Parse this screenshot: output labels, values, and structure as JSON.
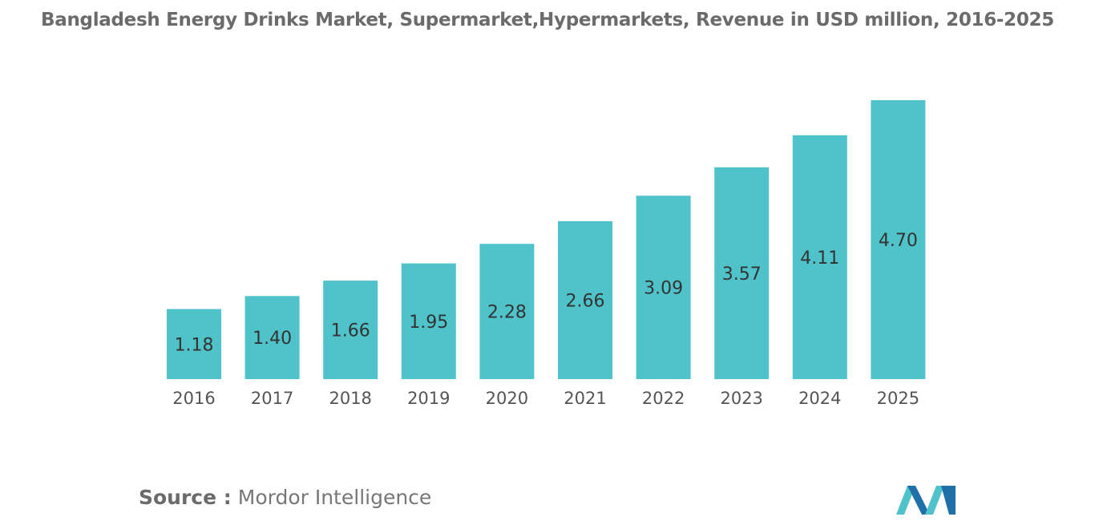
{
  "source": {
    "label": "Source :",
    "text": "Mordor Intelligence"
  },
  "colors": {
    "bar": "#4fc3c9",
    "title": "#6b6b6b",
    "axis_text": "#555555",
    "value_text": "#333333",
    "logo_dark": "#1f6fa8",
    "logo_light": "#4fc3c9"
  },
  "chart_data": {
    "type": "bar",
    "title": "Bangladesh Energy Drinks Market, Supermarket,Hypermarkets, Revenue in USD million, 2016-2025",
    "xlabel": "",
    "ylabel": "",
    "categories": [
      "2016",
      "2017",
      "2018",
      "2019",
      "2020",
      "2021",
      "2022",
      "2023",
      "2024",
      "2025"
    ],
    "values": [
      1.18,
      1.4,
      1.66,
      1.95,
      2.28,
      2.66,
      3.09,
      3.57,
      4.11,
      4.7
    ],
    "value_labels": [
      "1.18",
      "1.40",
      "1.66",
      "1.95",
      "2.28",
      "2.66",
      "3.09",
      "3.57",
      "4.11",
      "4.70"
    ],
    "ylim": [
      0,
      4.7
    ],
    "grid": false,
    "legend": "none"
  }
}
